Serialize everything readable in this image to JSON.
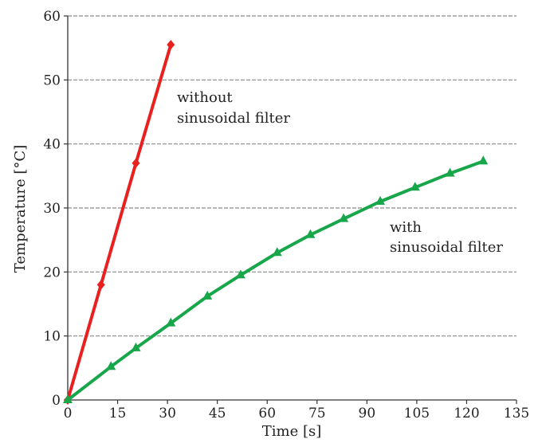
{
  "chart_data": {
    "type": "line",
    "xlabel": "Time [s]",
    "ylabel": "Temperature [°C]",
    "xlim": [
      0,
      135
    ],
    "ylim": [
      0,
      60
    ],
    "x_ticks": [
      0,
      15,
      30,
      45,
      60,
      75,
      90,
      105,
      120,
      135
    ],
    "y_ticks": [
      0,
      10,
      20,
      30,
      40,
      50,
      60
    ],
    "grid": "horizontal dashed",
    "series": [
      {
        "name": "without sinusoidal filter",
        "color": "#e8201e",
        "marker": "diamond",
        "points": [
          [
            0,
            0
          ],
          [
            10,
            18
          ],
          [
            20.5,
            37
          ],
          [
            31,
            55.5
          ]
        ]
      },
      {
        "name": "with sinusoidal filter",
        "color": "#17a64a",
        "marker": "triangle",
        "points": [
          [
            0,
            0
          ],
          [
            13,
            5.2
          ],
          [
            20.5,
            8.1
          ],
          [
            31,
            12
          ],
          [
            42,
            16.2
          ],
          [
            52,
            19.5
          ],
          [
            63,
            23
          ],
          [
            73,
            25.8
          ],
          [
            83,
            28.3
          ],
          [
            94,
            31
          ],
          [
            104.5,
            33.2
          ],
          [
            115,
            35.4
          ],
          [
            125,
            37.3
          ]
        ]
      }
    ],
    "annotations": [
      {
        "series": 0,
        "lines": [
          "without",
          "sinusoidal filter"
        ]
      },
      {
        "series": 1,
        "lines": [
          "with",
          "sinusoidal filter"
        ]
      }
    ]
  }
}
